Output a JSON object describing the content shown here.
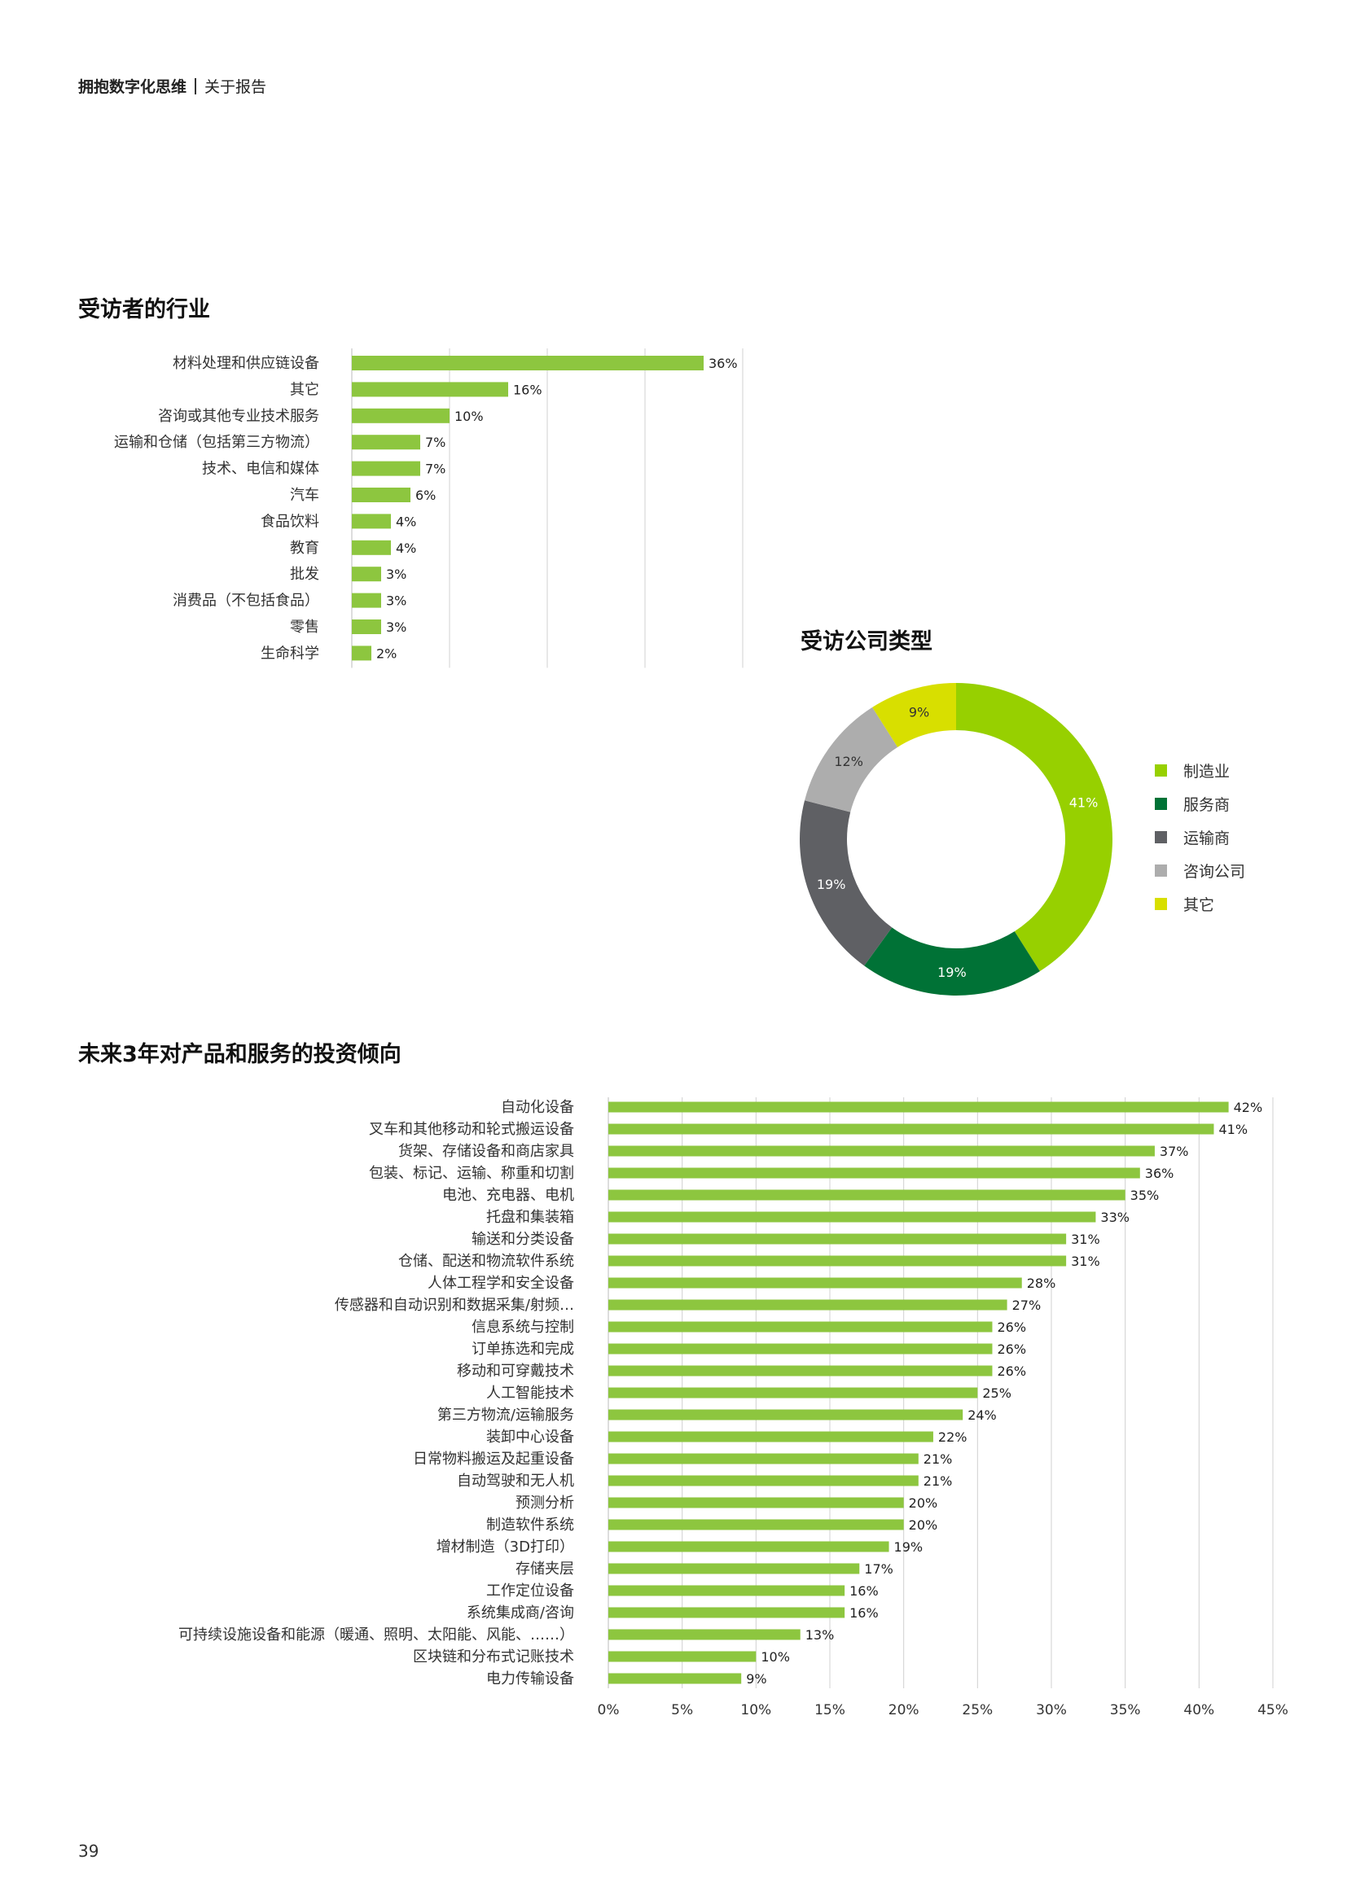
{
  "header": {
    "title": "拥抱数字化思维",
    "section": "关于报告"
  },
  "page_number": "39",
  "colors": {
    "bar": "#8dc63f",
    "grid": "#d0d0d0",
    "donut": [
      "#97d000",
      "#007236",
      "#5f6064",
      "#adadad",
      "#d8df00"
    ]
  },
  "chart_data": [
    {
      "type": "bar",
      "orientation": "horizontal",
      "title": "受访者的行业",
      "categories": [
        "材料处理和供应链设备",
        "其它",
        "咨询或其他专业技术服务",
        "运输和仓储（包括第三方物流）",
        "技术、电信和媒体",
        "汽车",
        "食品饮料",
        "教育",
        "批发",
        "消费品（不包括食品）",
        "零售",
        "生命科学"
      ],
      "values": [
        36,
        16,
        10,
        7,
        7,
        6,
        4,
        4,
        3,
        3,
        3,
        2
      ],
      "data_labels": [
        "36%",
        "16%",
        "10%",
        "7%",
        "7%",
        "6%",
        "4%",
        "4%",
        "3%",
        "3%",
        "3%",
        "2%"
      ],
      "xlim": [
        0,
        40
      ],
      "grid": true
    },
    {
      "type": "pie",
      "variant": "donut",
      "title": "受访公司类型",
      "categories": [
        "制造业",
        "服务商",
        "运输商",
        "咨询公司",
        "其它"
      ],
      "values": [
        41,
        19,
        19,
        12,
        9
      ],
      "data_labels": [
        "41%",
        "19%",
        "19%",
        "12%",
        "9%"
      ],
      "legend": "right"
    },
    {
      "type": "bar",
      "orientation": "horizontal",
      "title": "未来3年对产品和服务的投资倾向",
      "categories": [
        "自动化设备",
        "叉车和其他移动和轮式搬运设备",
        "货架、存储设备和商店家具",
        "包装、标记、运输、称重和切割",
        "电池、充电器、电机",
        "托盘和集装箱",
        "输送和分类设备",
        "仓储、配送和物流软件系统",
        "人体工程学和安全设备",
        "传感器和自动识别和数据采集/射频…",
        "信息系统与控制",
        "订单拣选和完成",
        "移动和可穿戴技术",
        "人工智能技术",
        "第三方物流/运输服务",
        "装卸中心设备",
        "日常物料搬运及起重设备",
        "自动驾驶和无人机",
        "预测分析",
        "制造软件系统",
        "增材制造（3D打印）",
        "存储夹层",
        "工作定位设备",
        "系统集成商/咨询",
        "可持续设施设备和能源（暖通、照明、太阳能、风能、……）",
        "区块链和分布式记账技术",
        "电力传输设备"
      ],
      "values": [
        42,
        41,
        37,
        36,
        35,
        33,
        31,
        31,
        28,
        27,
        26,
        26,
        26,
        25,
        24,
        22,
        21,
        21,
        20,
        20,
        19,
        17,
        16,
        16,
        13,
        10,
        9
      ],
      "data_labels": [
        "42%",
        "41%",
        "37%",
        "36%",
        "35%",
        "33%",
        "31%",
        "31%",
        "28%",
        "27%",
        "26%",
        "26%",
        "26%",
        "25%",
        "24%",
        "22%",
        "21%",
        "21%",
        "20%",
        "20%",
        "19%",
        "17%",
        "16%",
        "16%",
        "13%",
        "10%",
        "9%"
      ],
      "xlim": [
        0,
        45
      ],
      "xticks": [
        "0%",
        "5%",
        "10%",
        "15%",
        "20%",
        "25%",
        "30%",
        "35%",
        "40%",
        "45%"
      ],
      "grid": true
    }
  ]
}
